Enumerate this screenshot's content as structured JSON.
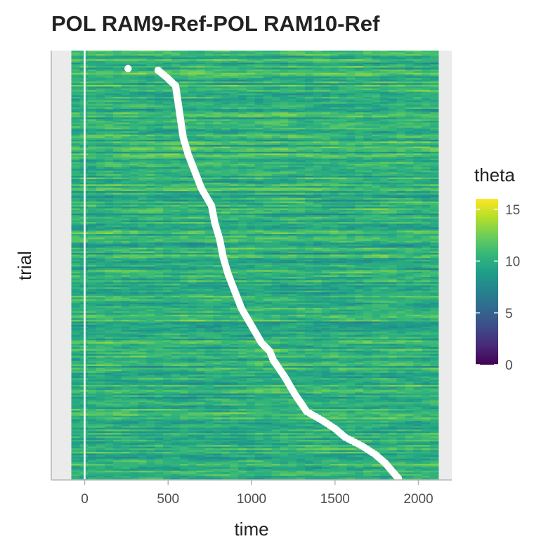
{
  "chart_data": {
    "type": "heatmap",
    "title": "POL RAM9-Ref-POL RAM10-Ref",
    "xlabel": "time",
    "ylabel": "trial",
    "xlim": [
      -200,
      2200
    ],
    "x_ticks": [
      0,
      500,
      1000,
      1500,
      2000
    ],
    "x_tick_labels": [
      "0",
      "500",
      "1000",
      "1500",
      "2000"
    ],
    "heatmap_time_range": [
      -80,
      2120
    ],
    "n_trials": 250,
    "colorbar": {
      "title": "theta",
      "range": [
        0,
        16
      ],
      "ticks": [
        0,
        5,
        10,
        15
      ],
      "tick_labels": [
        "0",
        "5",
        "10",
        "15"
      ],
      "colormap": "viridis"
    },
    "onset_line": {
      "x": 0,
      "color": "#ffffff"
    },
    "response_points": {
      "description": "per-trial response time markers (white dots), trials sorted by response time from top to bottom",
      "color": "#ffffff",
      "trial_index": [
        10,
        11,
        15,
        20,
        30,
        40,
        50,
        60,
        70,
        80,
        90,
        100,
        110,
        120,
        130,
        140,
        150,
        160,
        170,
        175,
        180,
        190,
        200,
        210,
        215,
        220,
        225,
        230,
        235,
        240,
        249
      ],
      "time": [
        260,
        440,
        490,
        545,
        560,
        575,
        590,
        620,
        660,
        700,
        760,
        780,
        810,
        830,
        860,
        900,
        940,
        1000,
        1060,
        1110,
        1130,
        1200,
        1260,
        1330,
        1420,
        1500,
        1560,
        1660,
        1740,
        1800,
        1880
      ]
    },
    "panel_background": "#ebebeb",
    "grid": true
  }
}
